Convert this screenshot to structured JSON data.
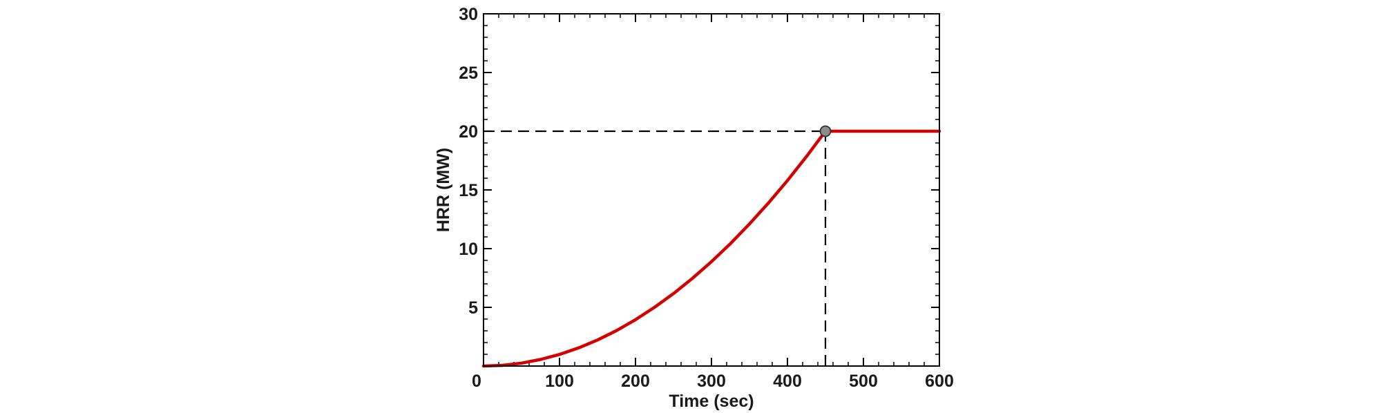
{
  "chart_data": {
    "type": "line",
    "title": "",
    "xlabel": "Time (sec)",
    "ylabel": "HRR (MW)",
    "xlim": [
      0,
      600
    ],
    "ylim": [
      0,
      30
    ],
    "x_ticks": [
      0,
      100,
      200,
      300,
      400,
      500,
      600
    ],
    "y_ticks": [
      5,
      10,
      15,
      20,
      25,
      30
    ],
    "x_tick_labels": [
      "0",
      "100",
      "200",
      "300",
      "400",
      "500",
      "600"
    ],
    "y_tick_labels": [
      "5",
      "10",
      "15",
      "20",
      "25",
      "30"
    ],
    "grid": false,
    "legend": "none",
    "series": [
      {
        "color": "#d40000",
        "x": [
          0,
          25,
          50,
          75,
          100,
          125,
          150,
          175,
          200,
          225,
          250,
          275,
          300,
          325,
          350,
          375,
          400,
          425,
          450,
          500,
          550,
          600
        ],
        "y": [
          0,
          0.06,
          0.25,
          0.56,
          0.99,
          1.54,
          2.22,
          3.02,
          3.95,
          5.0,
          6.17,
          7.47,
          8.89,
          10.43,
          12.1,
          13.89,
          15.8,
          17.84,
          20.0,
          20.0,
          20.0,
          20.0
        ]
      }
    ],
    "marker": {
      "x": 450,
      "y": 20,
      "color": "#8c8c8c"
    },
    "reference_lines": [
      {
        "orientation": "horizontal",
        "value": 20,
        "from": 0,
        "to": 450,
        "style": "dashed"
      },
      {
        "orientation": "vertical",
        "value": 450,
        "from": 0,
        "to": 20,
        "style": "dashed"
      }
    ]
  }
}
